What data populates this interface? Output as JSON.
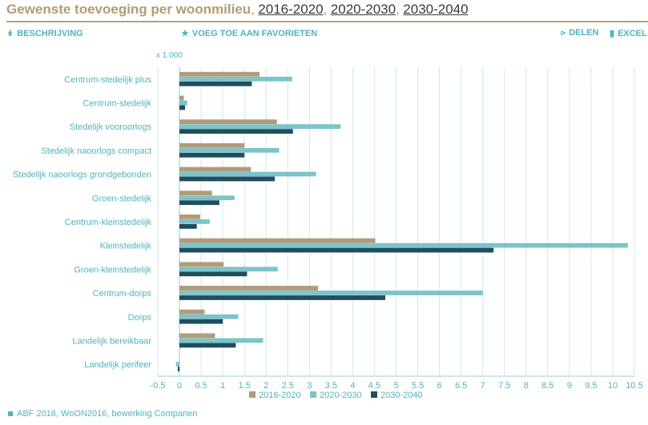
{
  "header": {
    "title": "Gewenste toevoeging per woonmilieu",
    "separator_1": ",",
    "separator_2": ",",
    "separator_3": ",",
    "periods": [
      "2016-2020",
      "2020-2030",
      "2030-2040"
    ]
  },
  "toolbar": {
    "description_label": "BESCHRIJVING",
    "favorite_label": "VOEG TOE AAN FAVORIETEN",
    "share_label": "DELEN",
    "excel_label": "EXCEL"
  },
  "footer": {
    "source": "ABF 2016, WoON2016, bewerking Companen"
  },
  "colors": {
    "series_2016_2020": "#b39b7a",
    "series_2020_2030": "#7cc4c9",
    "series_2030_2040": "#1f4e5f",
    "accent": "#4fb3bf"
  },
  "chart_data": {
    "type": "bar",
    "orientation": "horizontal",
    "unit_label": "x 1.000",
    "categories": [
      "Centrum-stedelijk plus",
      "Centrum-stedelijk",
      "Stedelijk vooroorlogs",
      "Stedelijk naoorlogs compact",
      "Stedelijk naoorlogs grondgebonden",
      "Groen-stedelijk",
      "Centrum-kleinstedelijk",
      "Kleinstedelijk",
      "Groen-kleinstedelijk",
      "Centrum-dorps",
      "Dorps",
      "Landelijk bereikbaar",
      "Landelijk perifeer"
    ],
    "series": [
      {
        "name": "2016-2020",
        "values": [
          1.85,
          0.1,
          2.25,
          1.5,
          1.65,
          0.75,
          0.48,
          4.52,
          1.02,
          3.2,
          0.58,
          0.82,
          0.0
        ]
      },
      {
        "name": "2020-2030",
        "values": [
          2.6,
          0.18,
          3.72,
          2.3,
          3.15,
          1.27,
          0.7,
          10.35,
          2.27,
          7.0,
          1.36,
          1.93,
          -0.08
        ]
      },
      {
        "name": "2030-2040",
        "values": [
          1.67,
          0.13,
          2.62,
          1.5,
          2.2,
          0.92,
          0.4,
          7.25,
          1.56,
          4.75,
          1.0,
          1.3,
          -0.04
        ]
      }
    ],
    "xlim": [
      -0.5,
      10.5
    ],
    "xticks": [
      "-0.5",
      "0",
      "0.5",
      "1",
      "1.5",
      "2",
      "2.5",
      "3",
      "3.5",
      "4",
      "4.5",
      "5",
      "5.5",
      "6",
      "6.5",
      "7",
      "7.5",
      "8",
      "8.5",
      "9",
      "9.5",
      "10",
      "10.5"
    ],
    "xlabel": "",
    "ylabel": "",
    "grid": true,
    "legend_position": "bottom"
  }
}
